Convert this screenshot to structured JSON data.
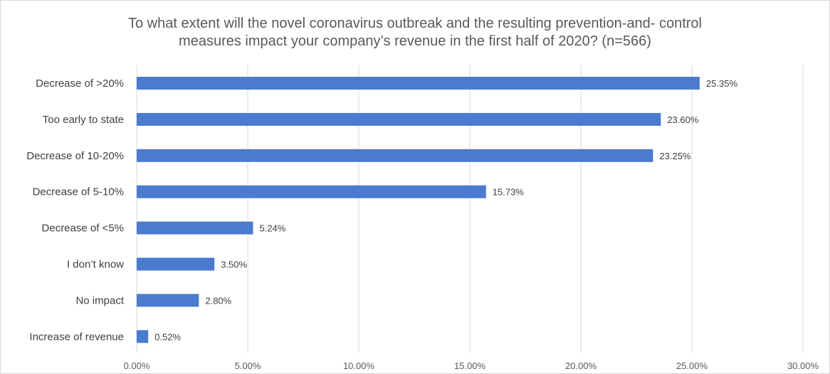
{
  "chart_data": {
    "type": "bar",
    "orientation": "horizontal",
    "title_lines": [
      "To what extent will the novel coronavirus outbreak and the resulting prevention-and- control",
      "measures impact your company’s revenue in the first half of 2020? (n=566)"
    ],
    "categories": [
      "Decrease of >20%",
      "Too early to state",
      "Decrease of 10-20%",
      "Decrease of 5-10%",
      "Decrease of <5%",
      "I don’t know",
      "No impact",
      "Increase of revenue"
    ],
    "values": [
      25.35,
      23.6,
      23.25,
      15.73,
      5.24,
      3.5,
      2.8,
      0.52
    ],
    "value_labels": [
      "25.35%",
      "23.60%",
      "23.25%",
      "15.73%",
      "5.24%",
      "3.50%",
      "2.80%",
      "0.52%"
    ],
    "xlim": [
      0,
      30
    ],
    "xticks": [
      0,
      5,
      10,
      15,
      20,
      25,
      30
    ],
    "xtick_labels": [
      "0.00%",
      "5.00%",
      "10.00%",
      "15.00%",
      "20.00%",
      "25.00%",
      "30.00%"
    ],
    "grid": "vertical",
    "legend": "none",
    "bar_color": "#4a7bcf",
    "grid_color": "#d9d9d9"
  }
}
